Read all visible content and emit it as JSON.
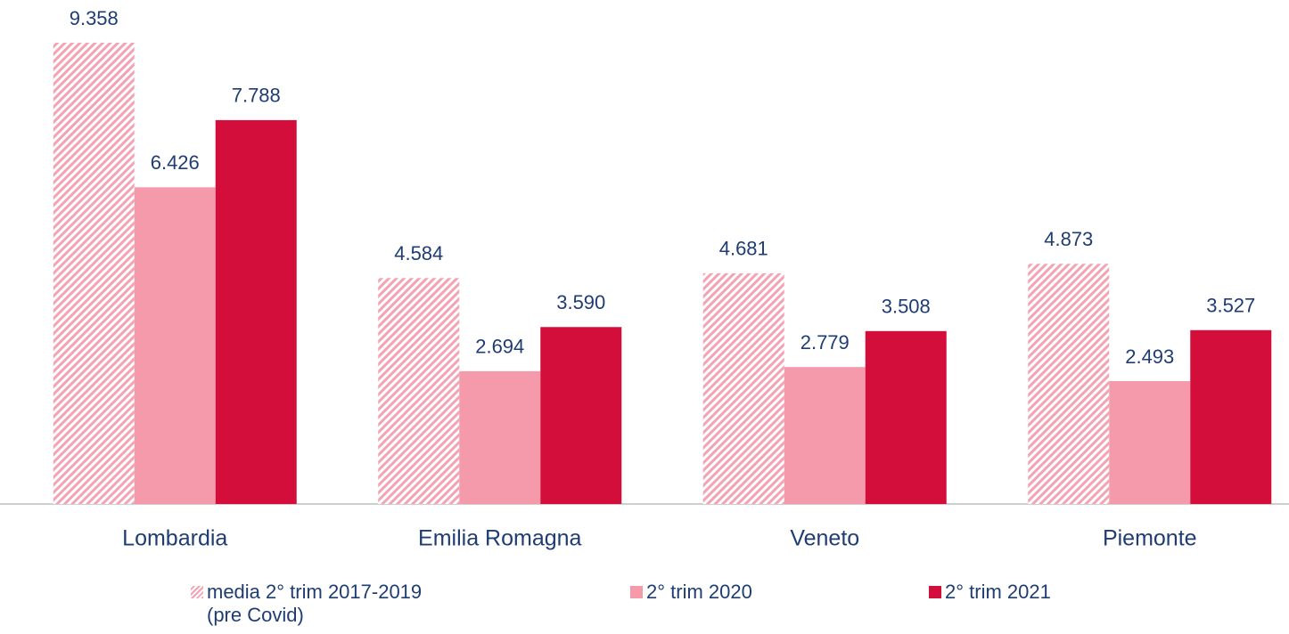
{
  "chart_data": {
    "type": "bar",
    "categories": [
      "Lombardia",
      "Emilia Romagna",
      "Veneto",
      "Piemonte"
    ],
    "series": [
      {
        "name": "media 2° trim 2017-2019 (pre Covid)",
        "color": "#f3a3b3",
        "hatch": true,
        "values": [
          9358,
          4584,
          4681,
          4873
        ],
        "value_labels": [
          "9.358",
          "4.584",
          "4.681",
          "4.873"
        ]
      },
      {
        "name": "2° trim 2020",
        "color": "#f59aab",
        "values": [
          6426,
          2694,
          2779,
          2493
        ],
        "value_labels": [
          "6.426",
          "2.694",
          "2.779",
          "2.493"
        ]
      },
      {
        "name": "2° trim 2021",
        "color": "#d40e3a",
        "values": [
          7788,
          3590,
          3508,
          3527
        ],
        "value_labels": [
          "7.788",
          "3.590",
          "3.508",
          "3.527"
        ]
      }
    ]
  }
}
